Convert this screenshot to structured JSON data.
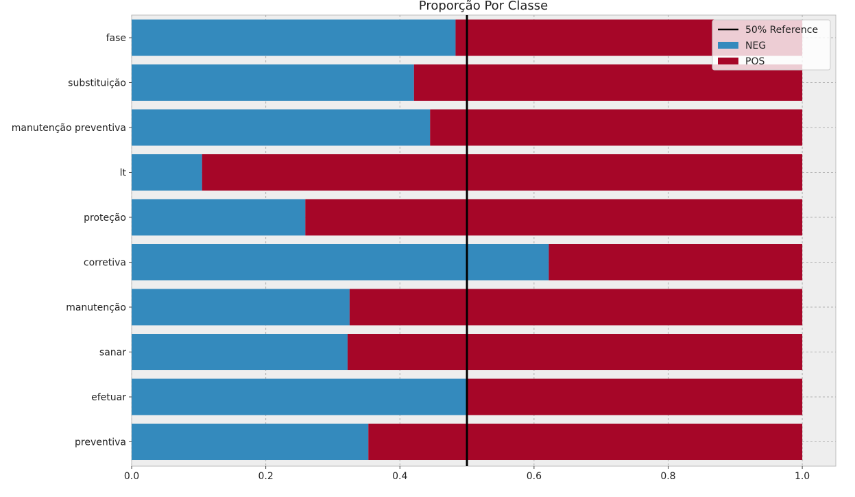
{
  "chart_data": {
    "type": "bar",
    "orientation": "horizontal",
    "stacked": true,
    "title": "Proporção Por Classe",
    "xlabel": "",
    "ylabel": "",
    "xlim": [
      0,
      1.05
    ],
    "xticks": [
      0.0,
      0.2,
      0.4,
      0.6,
      0.8,
      1.0
    ],
    "xtick_labels": [
      "0.0",
      "0.2",
      "0.4",
      "0.6",
      "0.8",
      "1.0"
    ],
    "grid": true,
    "legend_position": "top-right",
    "categories": [
      "fase",
      "substituição",
      "manutenção preventiva",
      "lt",
      "proteção",
      "corretiva",
      "manutenção",
      "sanar",
      "efetuar",
      "preventiva"
    ],
    "series": [
      {
        "name": "NEG",
        "color": "#348ABD",
        "values": [
          0.483,
          0.421,
          0.445,
          0.105,
          0.259,
          0.622,
          0.325,
          0.322,
          0.5,
          0.353
        ]
      },
      {
        "name": "POS",
        "color": "#A60628",
        "values": [
          0.517,
          0.579,
          0.555,
          0.895,
          0.741,
          0.378,
          0.675,
          0.678,
          0.5,
          0.647
        ]
      }
    ],
    "reference_line": {
      "name": "50% Reference",
      "value": 0.5,
      "color": "#000000"
    }
  }
}
